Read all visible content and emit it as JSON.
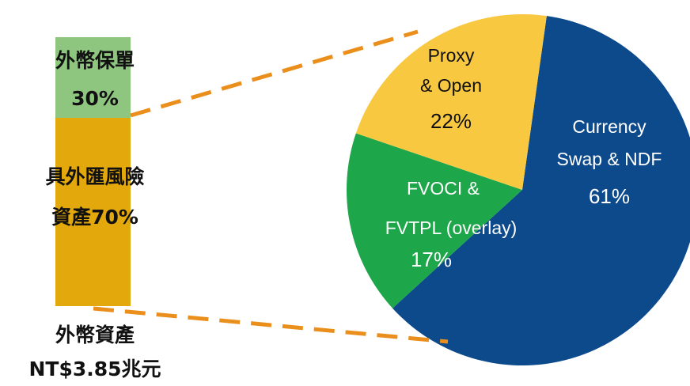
{
  "chart_data": [
    {
      "type": "stacked-bar",
      "categories": [
        "外幣資產"
      ],
      "total_label": "NT$3.85兆元",
      "ylim": [
        0,
        100
      ],
      "series": [
        {
          "name": [
            "外幣保單"
          ],
          "color": "#8fc67f",
          "values": [
            30
          ],
          "value_labels": [
            "30%"
          ]
        },
        {
          "name": [
            "具外匯風險",
            "資產"
          ],
          "color": "#e3a90c",
          "values": [
            70
          ],
          "value_labels": [
            "70%"
          ]
        }
      ]
    },
    {
      "type": "pie",
      "categories": [
        [
          "Currency",
          "Swap & NDF"
        ],
        [
          "FVOCI &",
          "FVTPL (overlay)"
        ],
        [
          "Proxy",
          "& Open"
        ]
      ],
      "values": [
        61,
        17,
        22
      ],
      "value_labels": [
        "61%",
        "17%",
        "22%"
      ],
      "colors": [
        "#0d4a8c",
        "#1ea64a",
        "#f8c841"
      ]
    }
  ]
}
